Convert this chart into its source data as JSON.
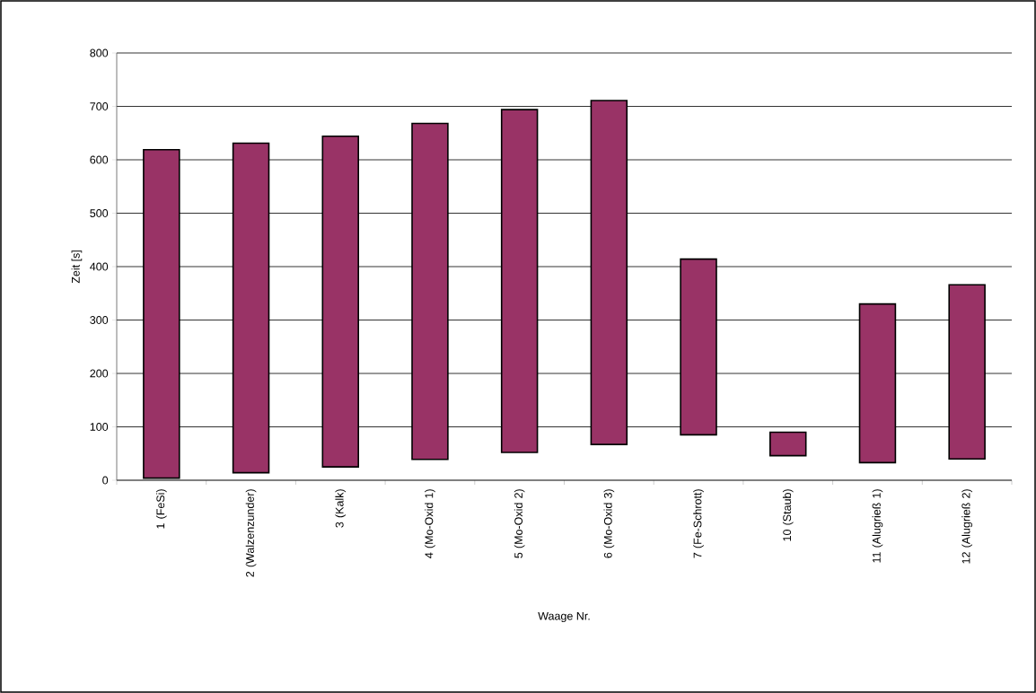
{
  "chart_data": {
    "type": "bar",
    "xlabel": "Waage Nr.",
    "ylabel": "Zeit [s]",
    "categories": [
      "1 (FeSi)",
      "2 (Walzenzunder)",
      "3 (Kalk)",
      "4 (Mo-Oxid 1)",
      "5 (Mo-Oxid 2)",
      "6 (Mo-Oxid 3)",
      "7 (Fe-Schrott)",
      "10 (Staub)",
      "11 (Alugrieß 1)",
      "12 (Alugrieß 2)"
    ],
    "base": [
      4,
      14,
      25,
      39,
      52,
      67,
      85,
      46,
      33,
      40
    ],
    "values": [
      615,
      617,
      619,
      629,
      642,
      644,
      329,
      44,
      297,
      326
    ],
    "color": "#993366",
    "ylim": [
      0,
      800
    ],
    "yticks": [
      0,
      100,
      200,
      300,
      400,
      500,
      600,
      700,
      800
    ],
    "grid": "y"
  }
}
